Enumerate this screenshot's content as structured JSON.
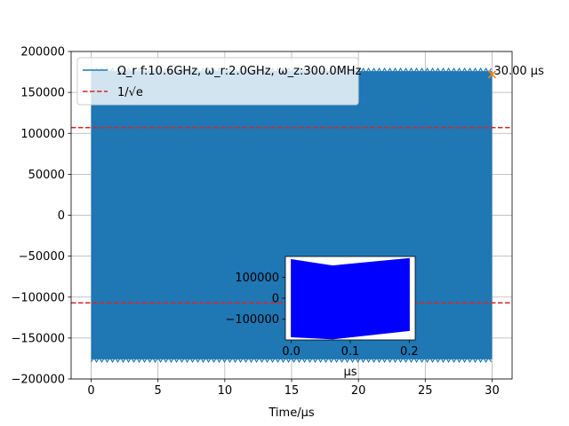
{
  "chart_data": [
    {
      "type": "line",
      "role": "main",
      "xlabel": "Time/μs",
      "ylabel": "",
      "xlim": [
        -1.5,
        31.5
      ],
      "ylim": [
        -200000,
        200000
      ],
      "grid": true,
      "xticks": [
        0,
        5,
        10,
        15,
        20,
        25,
        30
      ],
      "xtick_labels": [
        "0",
        "5",
        "10",
        "15",
        "20",
        "25",
        "30"
      ],
      "yticks": [
        -200000,
        -150000,
        -100000,
        -50000,
        0,
        50000,
        100000,
        150000,
        200000
      ],
      "ytick_labels": [
        "−200000",
        "−150000",
        "−100000",
        "−50000",
        "0",
        "50000",
        "100000",
        "150000",
        "200000"
      ],
      "legend_position": "top-left",
      "series": [
        {
          "name": "Ω_r f:10.6GHz, ω_r:2.0GHz, ω_z:300.0MHz",
          "color": "#1f77b4",
          "style": "solid",
          "x_range": [
            0,
            30
          ],
          "amplitude": 176000
        },
        {
          "name": "1/√e",
          "color": "#d62728",
          "style": "dashed",
          "x": [
            -1.5,
            31.5
          ],
          "y_levels": [
            107000,
            -107000
          ]
        }
      ],
      "annotations": [
        {
          "text": "30.00 μs",
          "x": 30,
          "y": 172000,
          "marker": "x",
          "marker_color": "#ff7f0e"
        }
      ]
    },
    {
      "type": "line",
      "role": "inset",
      "xlabel": "μs",
      "ylabel": "",
      "xlim": [
        -0.01,
        0.21
      ],
      "ylim": [
        -200000,
        200000
      ],
      "xticks": [
        0.0,
        0.1,
        0.2
      ],
      "xtick_labels": [
        "0.0",
        "0.1",
        "0.2"
      ],
      "yticks": [
        -100000,
        0,
        100000
      ],
      "ytick_labels": [
        "−100000",
        "0",
        "100000"
      ],
      "series": [
        {
          "name": "",
          "color": "#0000ff",
          "upper_envelope": {
            "x": [
              0.0,
              0.07,
              0.2
            ],
            "y": [
              185000,
              155000,
              190000
            ]
          },
          "lower_envelope": {
            "x": [
              0.0,
              0.07,
              0.2
            ],
            "y": [
              -185000,
              -195000,
              -155000
            ]
          }
        }
      ]
    }
  ]
}
